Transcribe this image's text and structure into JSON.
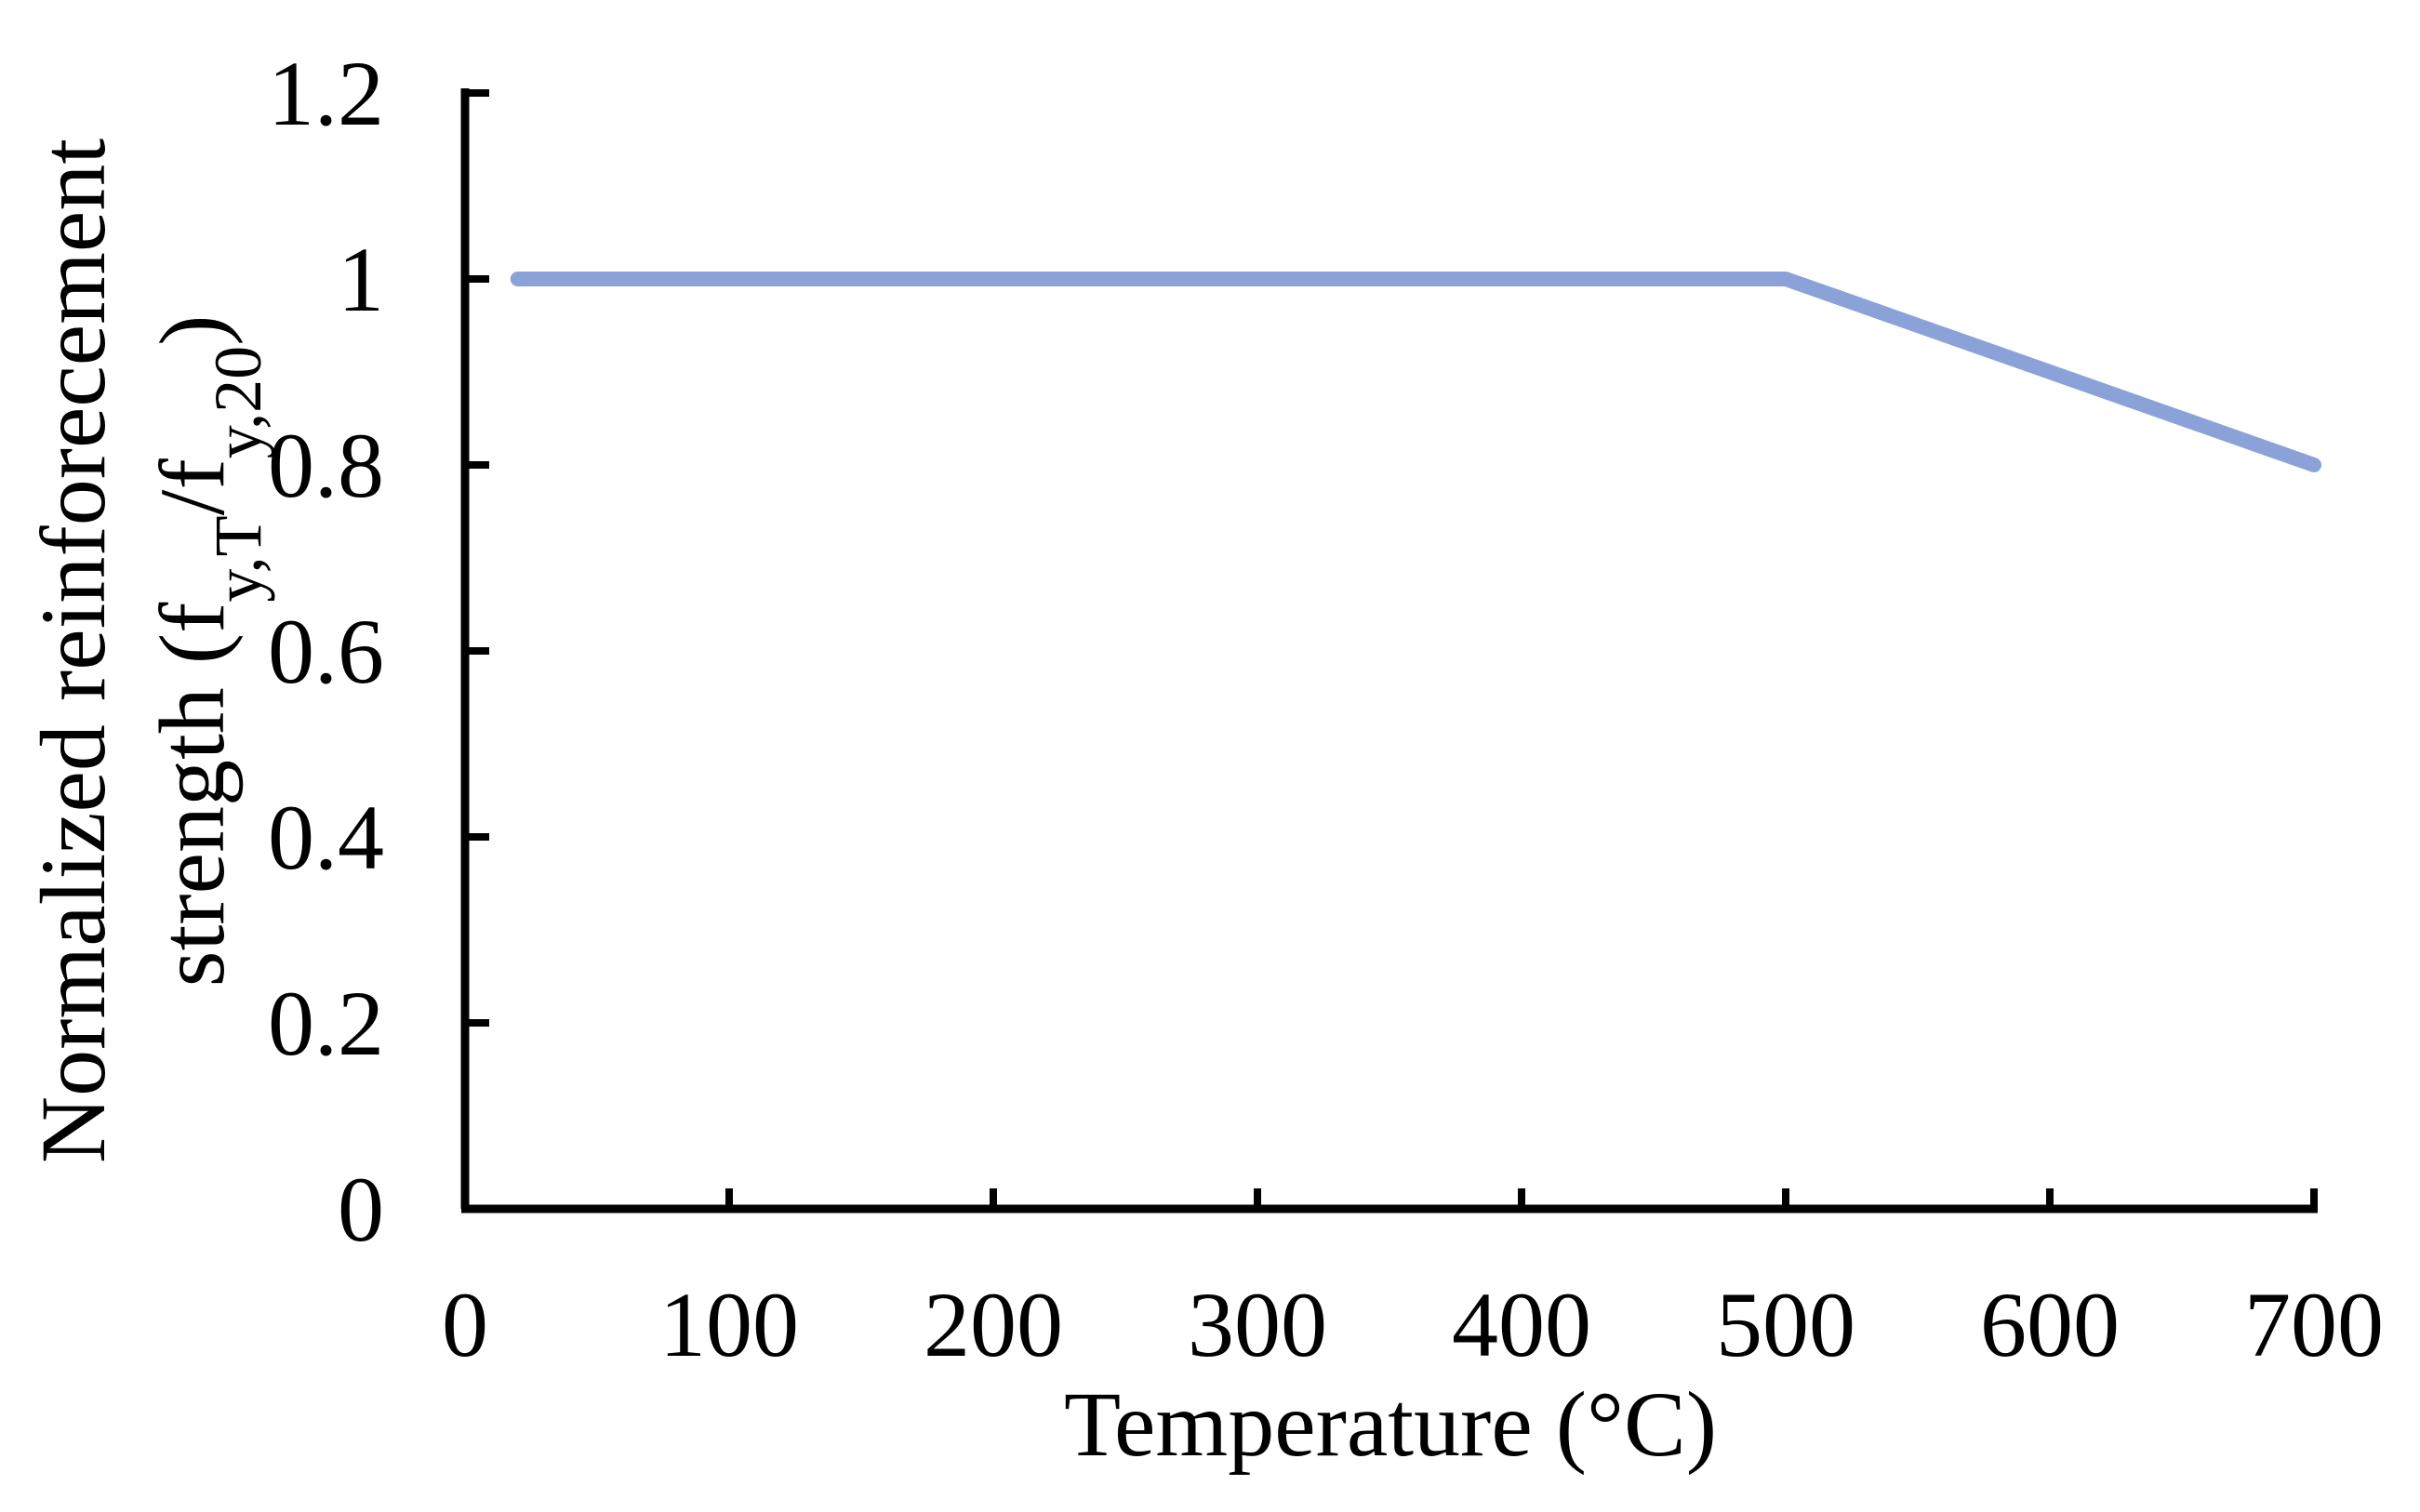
{
  "chart_data": {
    "type": "line",
    "title": "",
    "xlabel": "Temperature (°C)",
    "ylabel_line1": "Normalized reinforecement",
    "ylabel_line2_prefix": "strength (f",
    "ylabel_sub1": "y,T",
    "ylabel_slash": "/f",
    "ylabel_sub2": "y,20",
    "ylabel_suffix": ")",
    "xlim": [
      0,
      700
    ],
    "ylim": [
      0,
      1.2
    ],
    "xticks": [
      0,
      100,
      200,
      300,
      400,
      500,
      600,
      700
    ],
    "xtick_labels": [
      "0",
      "100",
      "200",
      "300",
      "400",
      "500",
      "600",
      "700"
    ],
    "yticks": [
      0,
      0.2,
      0.4,
      0.6,
      0.8,
      1.0,
      1.2
    ],
    "ytick_labels": [
      "0",
      "0.2",
      "0.4",
      "0.6",
      "0.8",
      "1",
      "1.2"
    ],
    "grid": false,
    "series": [
      {
        "name": "Normalized reinforcement strength",
        "color": "#8aa2d8",
        "x": [
          20,
          500,
          700
        ],
        "y": [
          1.0,
          1.0,
          0.8
        ]
      }
    ]
  }
}
